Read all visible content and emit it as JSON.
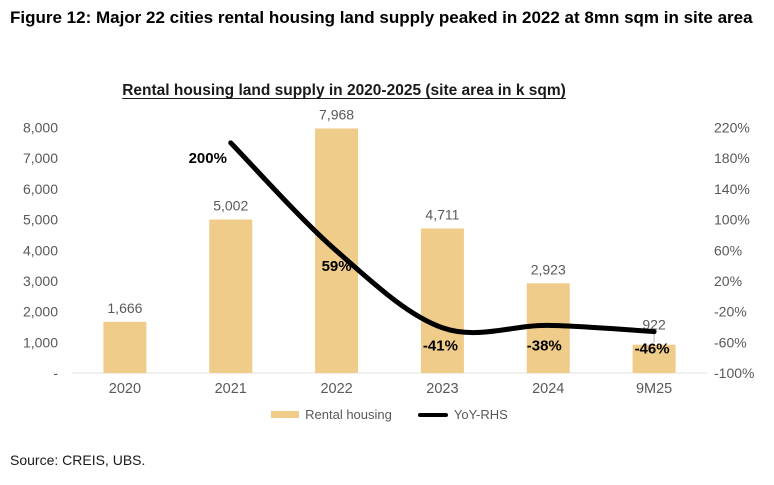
{
  "figure": {
    "title": "Figure 12: Major 22 cities rental housing land supply peaked in 2022 at 8mn sqm in site area",
    "source": "Source: CREIS, UBS."
  },
  "chart_data": {
    "type": "combo_bar_line",
    "title": "Rental housing land supply in 2020-2025 (site area in k sqm)",
    "categories": [
      "2020",
      "2021",
      "2022",
      "2023",
      "2024",
      "9M25"
    ],
    "series": [
      {
        "name": "Rental housing",
        "chart_type": "bar",
        "axis": "left",
        "color": "#F0CC8A",
        "values": [
          1666,
          5002,
          7968,
          4711,
          2923,
          922
        ],
        "value_labels": [
          "1,666",
          "5,002",
          "7,968",
          "4,711",
          "2,923",
          "922"
        ]
      },
      {
        "name": "YoY-RHS",
        "chart_type": "line",
        "axis": "right",
        "color": "#000000",
        "values": [
          null,
          200,
          59,
          -41,
          -38,
          -46
        ],
        "value_labels": [
          null,
          "200%",
          "59%",
          "-41%",
          "-38%",
          "-46%"
        ]
      }
    ],
    "left_axis": {
      "min": 0,
      "max": 8000,
      "step": 1000,
      "tick_labels_top_to_bottom": [
        "8,000",
        "7,000",
        "6,000",
        "5,000",
        "4,000",
        "3,000",
        "2,000",
        "1,000",
        "-"
      ]
    },
    "right_axis": {
      "min": -100,
      "max": 220,
      "step": 40,
      "unit": "%",
      "tick_labels_top_to_bottom": [
        "220%",
        "180%",
        "140%",
        "100%",
        "60%",
        "20%",
        "-20%",
        "-60%",
        "-100%"
      ]
    },
    "layout": {
      "grid": false,
      "legend_position": "bottom",
      "axis_text_color": "#595959",
      "percent_label_color": "#000000",
      "background": "#FFFFFF"
    }
  }
}
